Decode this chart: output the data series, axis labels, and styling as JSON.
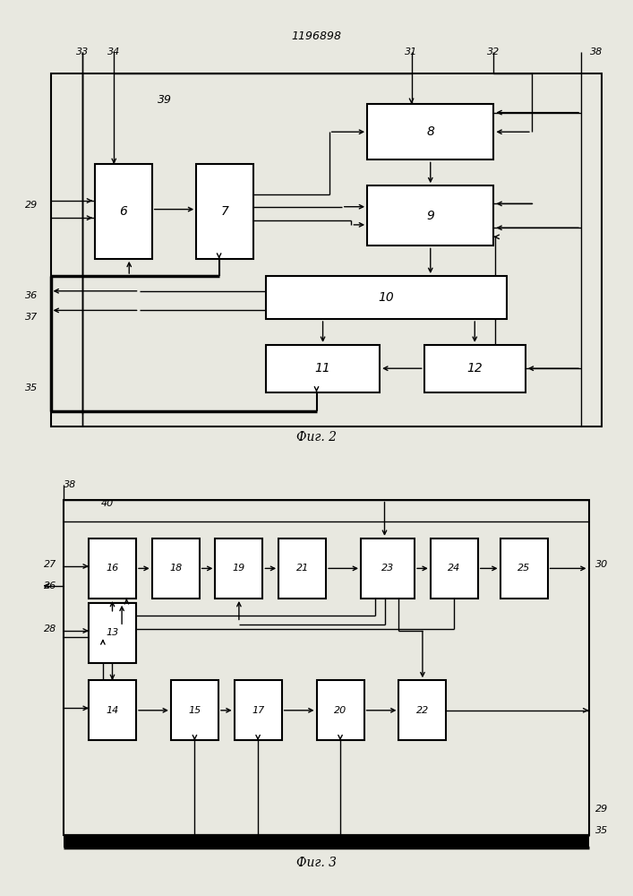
{
  "title": "1196898",
  "fig2_caption": "Фиг. 2",
  "fig3_caption": "Фиг. 3",
  "bg_color": "#e8e8e0",
  "lw_thin": 1.0,
  "lw_med": 1.5,
  "lw_thick": 2.5
}
